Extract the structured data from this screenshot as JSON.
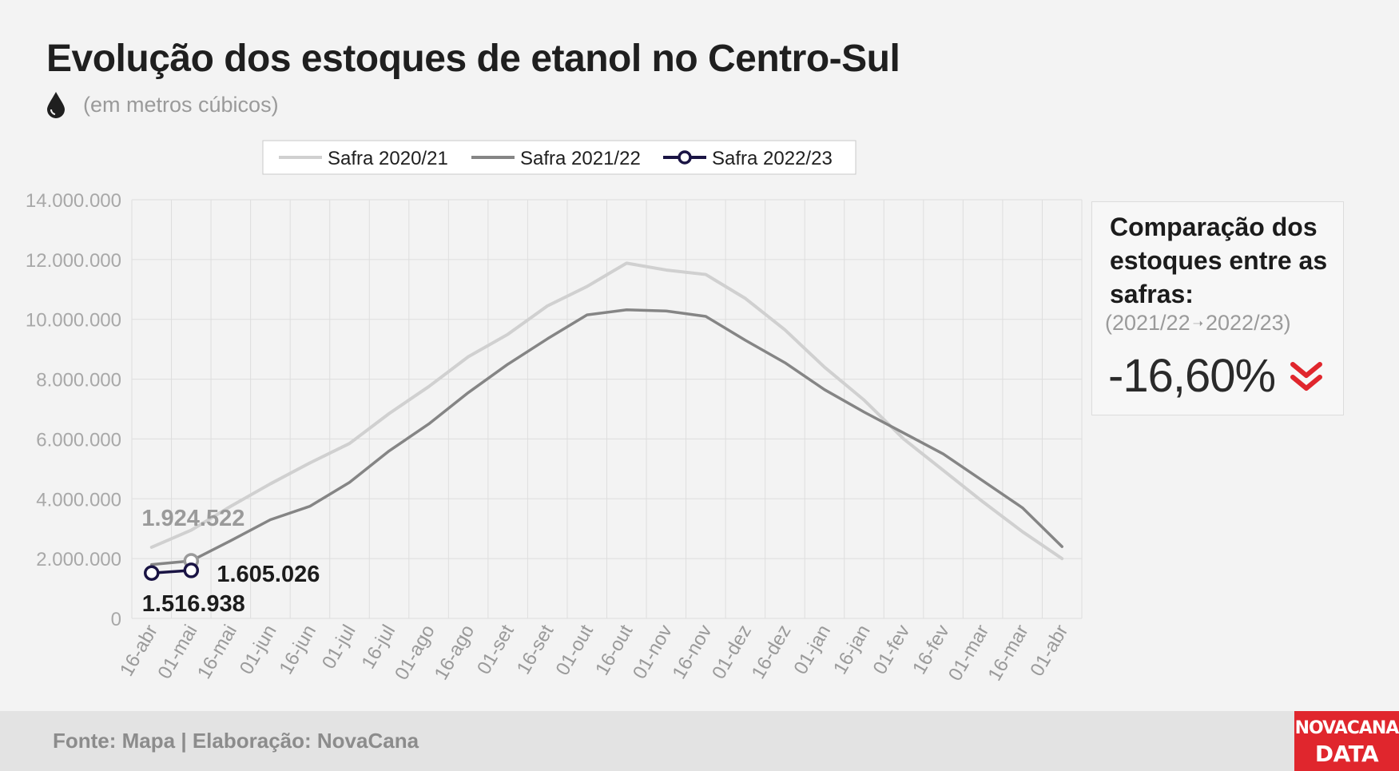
{
  "header": {
    "title": "Evolução dos estoques de etanol no Centro-Sul",
    "subtitle": "(em metros cúbicos)",
    "icon": "drop-icon"
  },
  "comparison": {
    "title": "Comparação dos estoques entre as safras:",
    "from": "(2021/22",
    "to": "2022/23)",
    "value": "-16,60%",
    "icon": "double-chevron-down-icon",
    "color": "#e0262d"
  },
  "footer": {
    "source": "Fonte: Mapa | Elaboração: NovaCana",
    "logo_top": "NOVACANA",
    "logo_bottom": "DATA",
    "logo_color": "#e0262d"
  },
  "chart_data": {
    "type": "line",
    "categories": [
      "16-abr",
      "01-mai",
      "16-mai",
      "01-jun",
      "16-jun",
      "01-jul",
      "16-jul",
      "01-ago",
      "16-ago",
      "01-set",
      "16-set",
      "01-out",
      "16-out",
      "01-nov",
      "16-nov",
      "01-dez",
      "16-dez",
      "01-jan",
      "16-jan",
      "01-fev",
      "16-fev",
      "01-mar",
      "16-mar",
      "01-abr"
    ],
    "y_tick_labels": [
      "0",
      "2.000.000",
      "4.000.000",
      "6.000.000",
      "8.000.000",
      "10.000.000",
      "12.000.000",
      "14.000.000"
    ],
    "ylim": [
      0,
      14000000
    ],
    "grid": true,
    "legend_position": "top",
    "series": [
      {
        "name": "Safra 2020/21",
        "color": "#d0d0d0",
        "x": [
          0,
          1,
          2,
          3,
          4,
          5,
          6,
          7,
          8,
          9,
          10,
          11,
          12,
          13,
          14,
          15,
          16,
          17,
          18,
          19,
          20,
          21,
          22,
          23
        ],
        "values": [
          2380000,
          2950000,
          3750000,
          4500000,
          5200000,
          5850000,
          6850000,
          7750000,
          8750000,
          9500000,
          10450000,
          11100000,
          11880000,
          11650000,
          11500000,
          10700000,
          9650000,
          8400000,
          7300000,
          6000000,
          4950000,
          3900000,
          2900000,
          2000000
        ]
      },
      {
        "name": "Safra 2021/22",
        "color": "#858585",
        "x": [
          0,
          1,
          2,
          3,
          4,
          5,
          6,
          7,
          8,
          9,
          10,
          11,
          12,
          13,
          14,
          15,
          16,
          17,
          18,
          19,
          20,
          21,
          22,
          23
        ],
        "values": [
          1800000,
          1924522,
          2600000,
          3300000,
          3750000,
          4550000,
          5600000,
          6500000,
          7550000,
          8500000,
          9350000,
          10150000,
          10320000,
          10280000,
          10100000,
          9300000,
          8550000,
          7650000,
          6900000,
          6200000,
          5500000,
          4600000,
          3700000,
          2400000
        ]
      },
      {
        "name": "Safra 2022/23",
        "color": "#1a1444",
        "x": [
          0,
          1
        ],
        "values": [
          1516938,
          1605026
        ]
      }
    ],
    "annotations": [
      {
        "text": "1.924.522",
        "series": 1,
        "index": 1,
        "color": "#9a9a9a"
      },
      {
        "text": "1.605.026",
        "series": 2,
        "index": 1,
        "color": "#1c1c1c"
      },
      {
        "text": "1.516.938",
        "series": 2,
        "index": 0,
        "color": "#1c1c1c"
      }
    ]
  }
}
